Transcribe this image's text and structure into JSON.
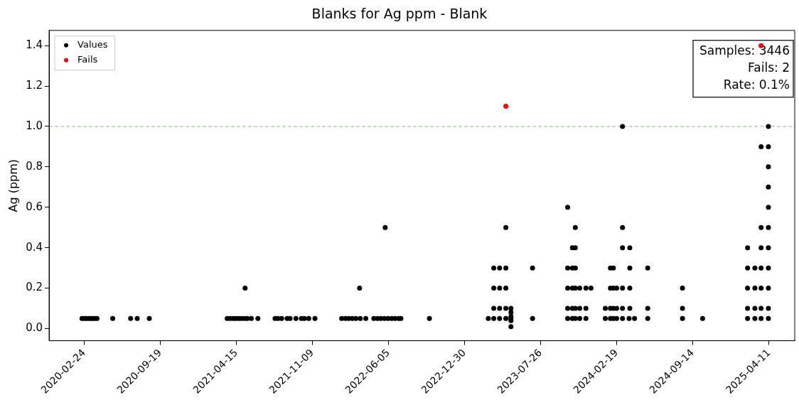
{
  "chart_data": {
    "type": "scatter",
    "title": "Blanks for Ag ppm - Blank",
    "ylabel": "Ag (ppm)",
    "xlim": [
      "2019-11-20",
      "2025-06-20"
    ],
    "xticks": [
      "2020-02-24",
      "2020-09-19",
      "2021-04-15",
      "2021-11-09",
      "2022-06-05",
      "2022-12-30",
      "2023-07-26",
      "2024-02-19",
      "2024-09-14",
      "2025-04-11"
    ],
    "ylim": [
      -0.06,
      1.475
    ],
    "yticks": [
      {
        "value": 0,
        "label": "0.0"
      },
      0.2,
      0.4,
      0.6,
      0.8,
      {
        "value": 1,
        "label": "1.0"
      },
      1.2,
      1.4
    ],
    "marker": "circle",
    "grid": false,
    "legend": "top left",
    "ref_lines": [
      {
        "axis": "y",
        "value": 1,
        "color": "#8fbc8f",
        "line_style": "dashed"
      }
    ],
    "annotations": [
      "Samples: 3446",
      "Fails: 2",
      "Rate: 0.1%"
    ],
    "series": [
      {
        "name": "Values",
        "color": "#000000",
        "x": [
          "2020-02-18",
          "2020-02-24",
          "2020-03-01",
          "2020-03-07",
          "2020-03-13",
          "2020-03-18",
          "2020-03-24",
          "2020-03-30",
          "2020-05-12",
          "2020-06-30",
          "2020-07-18",
          "2020-08-20",
          "2021-03-21",
          "2021-03-29",
          "2021-04-06",
          "2021-04-13",
          "2021-04-21",
          "2021-04-29",
          "2021-05-07",
          "2021-05-15",
          "2021-05-26",
          "2021-06-13",
          "2021-05-09",
          "2021-07-30",
          "2021-08-07",
          "2021-08-17",
          "2021-09-01",
          "2021-09-09",
          "2021-09-25",
          "2021-10-10",
          "2021-10-18",
          "2021-10-30",
          "2021-11-16",
          "2022-01-28",
          "2022-02-07",
          "2022-02-16",
          "2022-02-26",
          "2022-03-08",
          "2022-03-20",
          "2022-04-04",
          "2022-03-18",
          "2022-04-26",
          "2022-05-06",
          "2022-05-15",
          "2022-05-25",
          "2022-06-04",
          "2022-06-14",
          "2022-06-23",
          "2022-07-03",
          "2022-07-09",
          "2022-05-27",
          "2022-09-25",
          "2023-03-05",
          "2023-03-20",
          "2023-04-05",
          "2023-04-22",
          "2023-03-20",
          "2023-04-05",
          "2023-04-22",
          "2023-03-20",
          "2023-04-05",
          "2023-04-22",
          "2023-03-20",
          "2023-04-05",
          "2023-04-22",
          "2023-04-22",
          "2023-05-06",
          "2023-05-06",
          "2023-05-06",
          "2023-05-06",
          "2023-05-06",
          "2023-05-06",
          "2023-07-04",
          "2023-07-04",
          "2023-10-08",
          "2023-10-21",
          "2023-10-29",
          "2023-11-10",
          "2023-11-27",
          "2023-10-08",
          "2023-10-21",
          "2023-10-29",
          "2023-11-10",
          "2023-11-27",
          "2023-10-08",
          "2023-10-21",
          "2023-10-29",
          "2023-11-10",
          "2023-11-27",
          "2023-12-11",
          "2023-10-08",
          "2023-10-21",
          "2023-10-29",
          "2023-10-21",
          "2023-10-29",
          "2023-10-29",
          "2023-10-08",
          "2024-01-19",
          "2024-02-02",
          "2024-02-10",
          "2024-02-19",
          "2024-03-06",
          "2024-03-24",
          "2024-04-08",
          "2024-01-19",
          "2024-02-02",
          "2024-02-10",
          "2024-02-19",
          "2024-03-06",
          "2024-03-26",
          "2024-02-02",
          "2024-02-10",
          "2024-02-19",
          "2024-03-06",
          "2024-03-26",
          "2024-02-02",
          "2024-02-10",
          "2024-03-26",
          "2024-03-06",
          "2024-03-26",
          "2024-03-06",
          "2024-03-06",
          "2024-05-14",
          "2024-05-14",
          "2024-05-14",
          "2024-08-17",
          "2024-08-17",
          "2024-08-17",
          "2024-10-11",
          "2025-02-11",
          "2025-03-03",
          "2025-03-20",
          "2025-04-09",
          "2025-02-11",
          "2025-03-03",
          "2025-03-20",
          "2025-04-09",
          "2025-02-11",
          "2025-03-03",
          "2025-03-20",
          "2025-04-09",
          "2025-02-11",
          "2025-03-03",
          "2025-03-20",
          "2025-04-09",
          "2025-02-11",
          "2025-03-20",
          "2025-04-09",
          "2025-03-20",
          "2025-04-09",
          "2025-04-09",
          "2025-04-09",
          "2025-04-09",
          "2025-03-20",
          "2025-04-09",
          "2025-04-09"
        ],
        "values": [
          0.05,
          0.05,
          0.05,
          0.05,
          0.05,
          0.05,
          0.05,
          0.05,
          0.05,
          0.05,
          0.05,
          0.05,
          0.05,
          0.05,
          0.05,
          0.05,
          0.05,
          0.05,
          0.05,
          0.05,
          0.05,
          0.05,
          0.2,
          0.05,
          0.05,
          0.05,
          0.05,
          0.05,
          0.05,
          0.05,
          0.05,
          0.05,
          0.05,
          0.05,
          0.05,
          0.05,
          0.05,
          0.05,
          0.05,
          0.05,
          0.2,
          0.05,
          0.05,
          0.05,
          0.05,
          0.05,
          0.05,
          0.05,
          0.05,
          0.05,
          0.5,
          0.05,
          0.05,
          0.05,
          0.05,
          0.05,
          0.1,
          0.1,
          0.1,
          0.2,
          0.2,
          0.2,
          0.3,
          0.3,
          0.3,
          0.5,
          0.1,
          0.08,
          0.06,
          0.05,
          0.04,
          0.01,
          0.05,
          0.3,
          0.05,
          0.05,
          0.05,
          0.05,
          0.05,
          0.1,
          0.1,
          0.1,
          0.1,
          0.1,
          0.2,
          0.2,
          0.2,
          0.2,
          0.2,
          0.2,
          0.3,
          0.3,
          0.3,
          0.4,
          0.4,
          0.5,
          0.6,
          0.05,
          0.05,
          0.05,
          0.05,
          0.05,
          0.05,
          0.05,
          0.1,
          0.1,
          0.1,
          0.1,
          0.1,
          0.1,
          0.2,
          0.2,
          0.2,
          0.2,
          0.2,
          0.3,
          0.3,
          0.3,
          0.4,
          0.4,
          0.5,
          1,
          0.05,
          0.1,
          0.3,
          0.05,
          0.1,
          0.2,
          0.05,
          0.05,
          0.05,
          0.05,
          0.05,
          0.1,
          0.1,
          0.1,
          0.1,
          0.2,
          0.2,
          0.2,
          0.2,
          0.3,
          0.3,
          0.3,
          0.3,
          0.4,
          0.4,
          0.4,
          0.5,
          0.5,
          0.6,
          0.7,
          0.8,
          0.9,
          0.9,
          1
        ]
      },
      {
        "name": "Fails",
        "color": "#ff0000",
        "x": [
          "2023-04-22",
          "2025-03-20"
        ],
        "values": [
          1.1,
          1.4
        ]
      }
    ]
  }
}
